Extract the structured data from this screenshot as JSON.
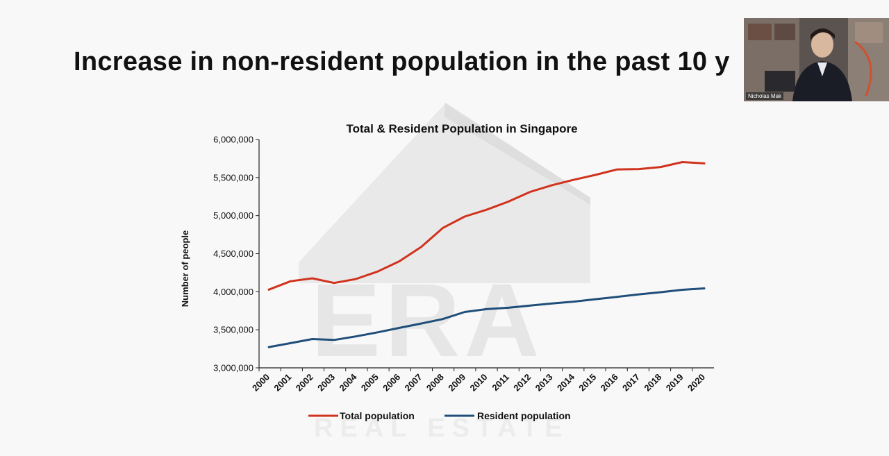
{
  "slide": {
    "title": "Increase in non-resident population in the past 10 y"
  },
  "watermark": {
    "letters": "ERA",
    "subtitle": "REAL ESTATE"
  },
  "video_call": {
    "participant_name": "Nicholas Mak"
  },
  "chart_data": {
    "type": "line",
    "title": "Total & Resident Population in Singapore",
    "xlabel": "",
    "ylabel": "Number of people",
    "x": [
      "2000",
      "2001",
      "2002",
      "2003",
      "2004",
      "2005",
      "2006",
      "2007",
      "2008",
      "2009",
      "2010",
      "2011",
      "2012",
      "2013",
      "2014",
      "2015",
      "2016",
      "2017",
      "2018",
      "2019",
      "2020"
    ],
    "ylim": [
      3000000,
      6000000
    ],
    "yticks": [
      3000000,
      3500000,
      4000000,
      4500000,
      5000000,
      5500000,
      6000000
    ],
    "ytick_labels": [
      "3,000,000",
      "3,500,000",
      "4,000,000",
      "4,500,000",
      "5,000,000",
      "5,500,000",
      "6,000,000"
    ],
    "grid": false,
    "legend_position": "bottom",
    "series": [
      {
        "name": "Total population",
        "color": "#d0321d",
        "values": [
          4028000,
          4138000,
          4176000,
          4115000,
          4167000,
          4266000,
          4401000,
          4589000,
          4839000,
          4988000,
          5077000,
          5184000,
          5312000,
          5399000,
          5470000,
          5535000,
          5607000,
          5612000,
          5639000,
          5704000,
          5686000
        ]
      },
      {
        "name": "Resident population",
        "color": "#1e4e79",
        "values": [
          3273000,
          3325000,
          3378000,
          3367000,
          3413000,
          3467000,
          3525000,
          3583000,
          3642000,
          3734000,
          3771000,
          3790000,
          3818000,
          3845000,
          3870000,
          3902000,
          3933000,
          3966000,
          3994000,
          4026000,
          4044000
        ]
      }
    ]
  }
}
